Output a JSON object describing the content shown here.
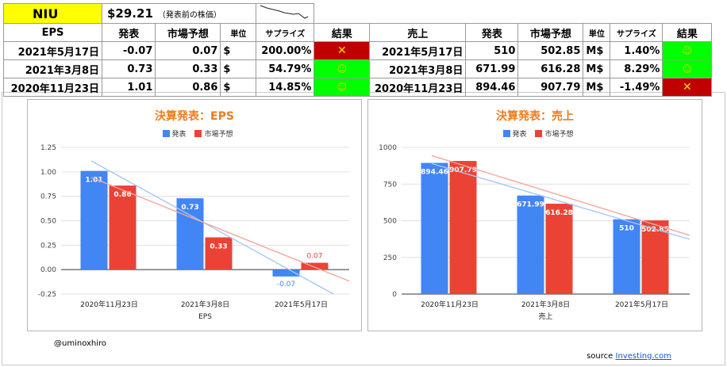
{
  "header": {
    "ticker": "NIU",
    "price": "$29.21",
    "price_note": "（発表前の株価）"
  },
  "eps_table": {
    "columns": [
      "EPS",
      "発表",
      "市場予想",
      "単位",
      "サプライズ",
      "結果"
    ],
    "rows": [
      {
        "date": "2021年5月17日",
        "actual": "-0.07",
        "forecast": "0.07",
        "unit": "$",
        "surprise": "200.00%",
        "result": "miss"
      },
      {
        "date": "2021年3月8日",
        "actual": "0.73",
        "forecast": "0.33",
        "unit": "$",
        "surprise": "54.79%",
        "result": "beat"
      },
      {
        "date": "2020年11月23日",
        "actual": "1.01",
        "forecast": "0.86",
        "unit": "$",
        "surprise": "14.85%",
        "result": "beat"
      }
    ]
  },
  "sales_table": {
    "columns": [
      "売上",
      "発表",
      "市場予想",
      "単位",
      "サプライズ",
      "結果"
    ],
    "rows": [
      {
        "date": "2021年5月17日",
        "actual": "510",
        "forecast": "502.85",
        "unit": "M$",
        "surprise": "1.40%",
        "result": "beat"
      },
      {
        "date": "2021年3月8日",
        "actual": "671.99",
        "forecast": "616.28",
        "unit": "M$",
        "surprise": "8.29%",
        "result": "beat"
      },
      {
        "date": "2020年11月23日",
        "actual": "894.46",
        "forecast": "907.79",
        "unit": "M$",
        "surprise": "-1.49%",
        "result": "miss"
      }
    ]
  },
  "symbols": {
    "miss": "✕",
    "beat": "☺"
  },
  "colors": {
    "actual": "#4285f4",
    "forecast": "#ea4335",
    "title": "#f07b19",
    "beat": "#00ff00",
    "miss": "#c00000"
  },
  "chart_data": [
    {
      "type": "bar",
      "title": "決算発表：EPS",
      "xlabel": "EPS",
      "categories": [
        "2020年11月23日",
        "2021年3月8日",
        "2021年5月17日"
      ],
      "series": [
        {
          "name": "発表",
          "values": [
            1.01,
            0.73,
            -0.07
          ],
          "labels": [
            "1.01",
            "0.73",
            "-0.07"
          ]
        },
        {
          "name": "市場予想",
          "values": [
            0.86,
            0.33,
            0.07
          ],
          "labels": [
            "0.86",
            "0.33",
            "0.07"
          ]
        }
      ],
      "ylim": [
        -0.25,
        1.25
      ],
      "yticks": [
        -0.25,
        0,
        0.25,
        0.5,
        0.75,
        1,
        1.25
      ],
      "ytick_labels": [
        "-0.25",
        "0.00",
        "0.25",
        "0.50",
        "0.75",
        "1.00",
        "1.25"
      ],
      "trendlines": true,
      "legend": "top"
    },
    {
      "type": "bar",
      "title": "決算発表：売上",
      "xlabel": "売上",
      "categories": [
        "2020年11月23日",
        "2021年3月8日",
        "2021年5月17日"
      ],
      "series": [
        {
          "name": "発表",
          "values": [
            894.46,
            671.99,
            510
          ],
          "labels": [
            "894.46",
            "671.99",
            "510"
          ]
        },
        {
          "name": "市場予想",
          "values": [
            907.79,
            616.28,
            502.85
          ],
          "labels": [
            "907.79",
            "616.28",
            "502.85"
          ]
        }
      ],
      "ylim": [
        0,
        1000
      ],
      "yticks": [
        0,
        250,
        500,
        750,
        1000
      ],
      "ytick_labels": [
        "0",
        "250",
        "500",
        "750",
        "1000"
      ],
      "trendlines": true,
      "legend": "top"
    }
  ],
  "footer": {
    "author": "@uminoxhiro",
    "source_label": "source",
    "source_link": "Investing.com"
  }
}
